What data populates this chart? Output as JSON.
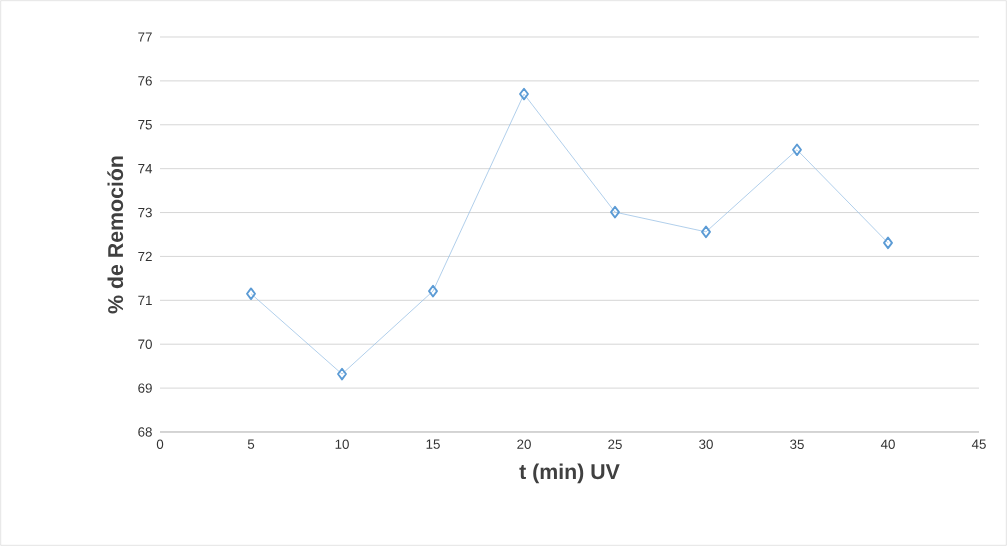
{
  "chart_data": {
    "type": "line",
    "xlabel": "t (min) UV",
    "ylabel": "% de Remoción",
    "x": [
      5,
      10,
      15,
      20,
      25,
      30,
      35,
      40
    ],
    "values": [
      71.15,
      69.32,
      71.21,
      75.7,
      73.01,
      72.56,
      74.43,
      72.31
    ],
    "color": "#5b9bd5",
    "marker": "diamond",
    "xlim": [
      0,
      45
    ],
    "xticks": [
      0,
      5,
      10,
      15,
      20,
      25,
      30,
      35,
      40,
      45
    ],
    "ylim": [
      68,
      77
    ],
    "yticks": [
      68,
      69,
      70,
      71,
      72,
      73,
      74,
      75,
      76,
      77
    ],
    "grid": "y"
  }
}
